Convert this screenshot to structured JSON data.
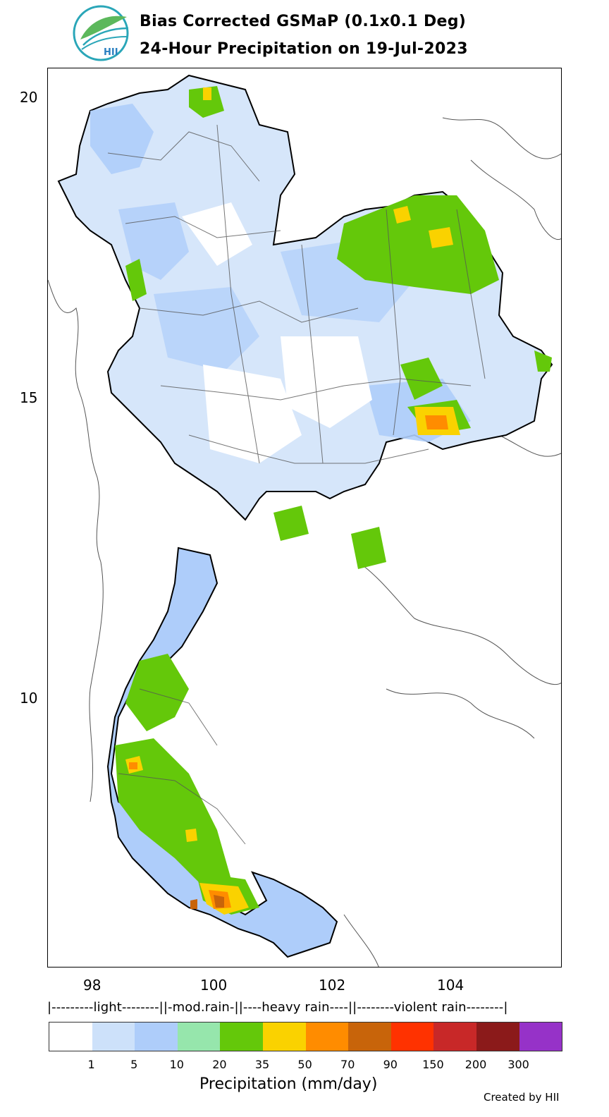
{
  "title_line1": "Bias Corrected GSMaP (0.1x0.1 Deg)",
  "title_line2": "24-Hour Precipitation on 19-Jul-2023",
  "logo_text": "HII",
  "lat_ticks": [
    "20",
    "15",
    "10"
  ],
  "lon_ticks": [
    "98",
    "100",
    "102",
    "104"
  ],
  "category_line": "|---------light--------||-mod.rain-||----heavy rain----||--------violent rain--------|",
  "colorbar": {
    "colors": [
      "#ffffff",
      "#cde1fa",
      "#aecdfa",
      "#96e6ac",
      "#64c80a",
      "#fad200",
      "#ff8c00",
      "#c8640a",
      "#ff3200",
      "#c82828",
      "#8b1a1a",
      "#9632c8"
    ],
    "ticks": [
      "1",
      "5",
      "10",
      "20",
      "35",
      "50",
      "70",
      "90",
      "150",
      "200",
      "300"
    ],
    "title": "Precipitation (mm/day)"
  },
  "credit": "Created by HII"
}
